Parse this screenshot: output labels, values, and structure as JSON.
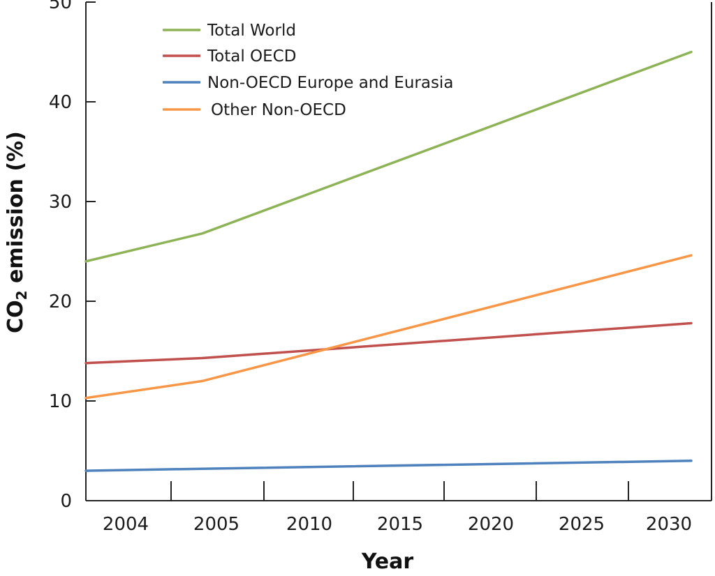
{
  "chart_data": {
    "type": "line",
    "title": "",
    "xlabel": "Year",
    "ylabel": {
      "prefix": "CO",
      "subscript": "2",
      "suffix": " emission  (%)"
    },
    "categories": [
      "2004",
      "2005",
      "2010",
      "2015",
      "2020",
      "2025",
      "2030"
    ],
    "ylim": [
      0,
      50
    ],
    "yticks": [
      "0",
      "10",
      "20",
      "30",
      "40",
      "50"
    ],
    "grid": false,
    "legend": "top-left",
    "series": [
      {
        "name": "Total World",
        "color": "#8db356",
        "points": [
          [
            0,
            24.0
          ],
          [
            1.25,
            26.8
          ],
          [
            6.5,
            45.0
          ]
        ]
      },
      {
        "name": "Total OECD",
        "color": "#c0504d",
        "points": [
          [
            0,
            13.8
          ],
          [
            1.25,
            14.3
          ],
          [
            6.5,
            17.8
          ]
        ]
      },
      {
        "name": "Non-OECD Europe and Eurasia",
        "color": "#4f81bd",
        "points": [
          [
            0,
            3.0
          ],
          [
            1.25,
            3.2
          ],
          [
            6.5,
            4.0
          ]
        ]
      },
      {
        "name": "Other Non-OECD",
        "color": "#f79646",
        "points": [
          [
            0,
            10.3
          ],
          [
            1.25,
            12.0
          ],
          [
            6.5,
            24.6
          ]
        ]
      }
    ]
  }
}
